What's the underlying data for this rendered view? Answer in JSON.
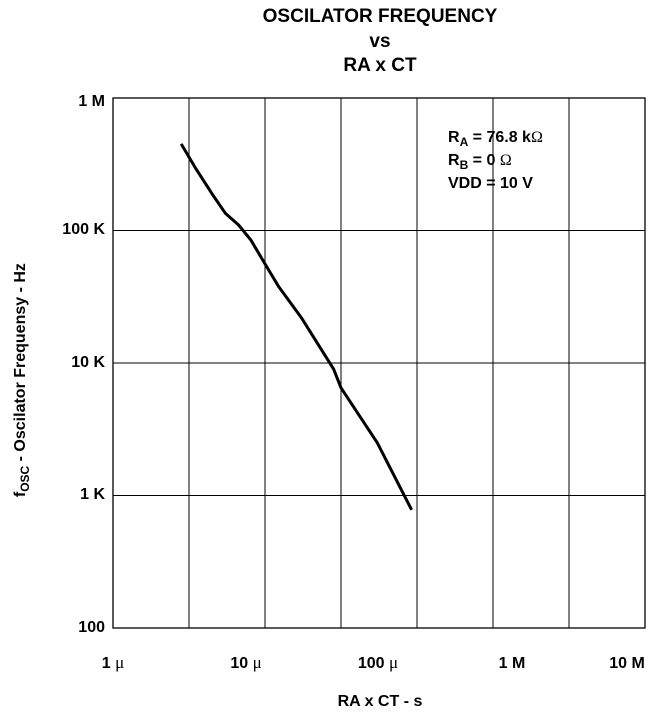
{
  "chart_data": {
    "type": "line",
    "title_lines": [
      "OSCILATOR FREQUENCY",
      "vs",
      "RA x CT"
    ],
    "xlabel": "RA x CT - s",
    "ylabel_main": "f",
    "ylabel_sub": "OSC",
    "ylabel_rest": " - Oscilator Frequensy - Hz",
    "x_scale": "log",
    "y_scale": "log",
    "xlim": [
      1e-06,
      10
    ],
    "ylim": [
      100,
      1000000
    ],
    "grid": true,
    "xticks": [
      {
        "value": 1e-06,
        "num": "1 ",
        "unit": "μ"
      },
      {
        "value": 1e-05,
        "num": "10 ",
        "unit": "μ"
      },
      {
        "value": 0.0001,
        "num": "100 ",
        "unit": "μ"
      },
      {
        "value": 1,
        "num": "1 M",
        "unit": ""
      },
      {
        "value": 10,
        "num": "10 M",
        "unit": ""
      }
    ],
    "yticks": [
      {
        "value": 1000000,
        "label": "1 M"
      },
      {
        "value": 100000,
        "label": "100 K"
      },
      {
        "value": 10000,
        "label": "10 K"
      },
      {
        "value": 1000,
        "label": "1 K"
      },
      {
        "value": 100,
        "label": "100"
      }
    ],
    "series": [
      {
        "color": "#000000",
        "points": [
          {
            "x": 7.9e-06,
            "y": 450000
          },
          {
            "x": 1.2e-05,
            "y": 300000
          },
          {
            "x": 2e-05,
            "y": 190000
          },
          {
            "x": 3e-05,
            "y": 135000
          },
          {
            "x": 4.5e-05,
            "y": 110000
          },
          {
            "x": 6.5e-05,
            "y": 85000
          },
          {
            "x": 0.0001,
            "y": 56000
          },
          {
            "x": 0.00015,
            "y": 38000
          },
          {
            "x": 0.0003,
            "y": 22000
          },
          {
            "x": 0.0008,
            "y": 9000
          },
          {
            "x": 0.001,
            "y": 6500
          },
          {
            "x": 0.003,
            "y": 2500
          },
          {
            "x": 0.0085,
            "y": 780
          }
        ]
      }
    ],
    "annotations": [
      {
        "main": "R",
        "sub": "A",
        "rest": " = 76.8 k",
        "symbol": "Ω"
      },
      {
        "main": "R",
        "sub": "B",
        "rest": " = 0 ",
        "symbol": "Ω"
      },
      {
        "main": "VDD = 10 V",
        "sub": "",
        "rest": "",
        "symbol": ""
      }
    ]
  }
}
